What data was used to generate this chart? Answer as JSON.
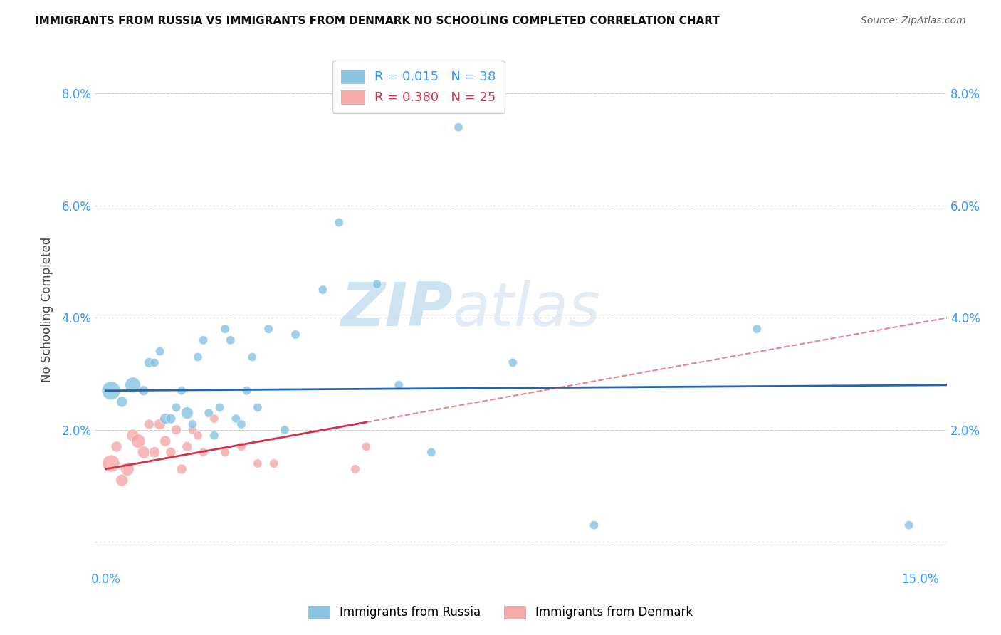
{
  "title": "IMMIGRANTS FROM RUSSIA VS IMMIGRANTS FROM DENMARK NO SCHOOLING COMPLETED CORRELATION CHART",
  "source": "Source: ZipAtlas.com",
  "ylabel": "No Schooling Completed",
  "russia_color": "#7fbfdf",
  "denmark_color": "#f4a0a0",
  "trendline_russia_color": "#2166ac",
  "trendline_denmark_color": "#d6304a",
  "xlim": [
    -0.002,
    0.155
  ],
  "ylim": [
    -0.005,
    0.088
  ],
  "xticks": [
    0.0,
    0.025,
    0.05,
    0.075,
    0.1,
    0.125,
    0.15
  ],
  "yticks": [
    0.0,
    0.02,
    0.04,
    0.06,
    0.08
  ],
  "russia_x": [
    0.001,
    0.003,
    0.005,
    0.007,
    0.008,
    0.009,
    0.01,
    0.011,
    0.012,
    0.013,
    0.014,
    0.015,
    0.016,
    0.017,
    0.018,
    0.019,
    0.02,
    0.021,
    0.022,
    0.023,
    0.024,
    0.025,
    0.026,
    0.027,
    0.028,
    0.03,
    0.033,
    0.035,
    0.04,
    0.043,
    0.05,
    0.054,
    0.06,
    0.065,
    0.075,
    0.09,
    0.12,
    0.148
  ],
  "russia_y": [
    0.027,
    0.025,
    0.028,
    0.027,
    0.032,
    0.032,
    0.034,
    0.022,
    0.022,
    0.024,
    0.027,
    0.023,
    0.021,
    0.033,
    0.036,
    0.023,
    0.019,
    0.024,
    0.038,
    0.036,
    0.022,
    0.021,
    0.027,
    0.033,
    0.024,
    0.038,
    0.02,
    0.037,
    0.045,
    0.057,
    0.046,
    0.028,
    0.016,
    0.074,
    0.032,
    0.003,
    0.038,
    0.003
  ],
  "russia_size": [
    350,
    120,
    250,
    100,
    100,
    80,
    80,
    120,
    100,
    80,
    80,
    150,
    80,
    80,
    80,
    80,
    80,
    80,
    80,
    80,
    80,
    80,
    80,
    80,
    80,
    80,
    80,
    80,
    80,
    80,
    80,
    80,
    80,
    80,
    80,
    80,
    80,
    80
  ],
  "denmark_x": [
    0.001,
    0.002,
    0.003,
    0.004,
    0.005,
    0.006,
    0.007,
    0.008,
    0.009,
    0.01,
    0.011,
    0.012,
    0.013,
    0.014,
    0.015,
    0.016,
    0.017,
    0.018,
    0.02,
    0.022,
    0.025,
    0.028,
    0.031,
    0.046,
    0.048
  ],
  "denmark_y": [
    0.014,
    0.017,
    0.011,
    0.013,
    0.019,
    0.018,
    0.016,
    0.021,
    0.016,
    0.021,
    0.018,
    0.016,
    0.02,
    0.013,
    0.017,
    0.02,
    0.019,
    0.016,
    0.022,
    0.016,
    0.017,
    0.014,
    0.014,
    0.013,
    0.017
  ],
  "denmark_size": [
    300,
    120,
    150,
    180,
    150,
    200,
    150,
    100,
    120,
    130,
    120,
    100,
    100,
    100,
    100,
    80,
    80,
    80,
    80,
    80,
    80,
    80,
    80,
    80,
    80
  ],
  "russia_trend_x0": 0.0,
  "russia_trend_x1": 0.155,
  "russia_trend_y0": 0.027,
  "russia_trend_y1": 0.028,
  "denmark_trend_x0": 0.0,
  "denmark_trend_x1": 0.155,
  "denmark_trend_y0": 0.013,
  "denmark_trend_y1": 0.04
}
